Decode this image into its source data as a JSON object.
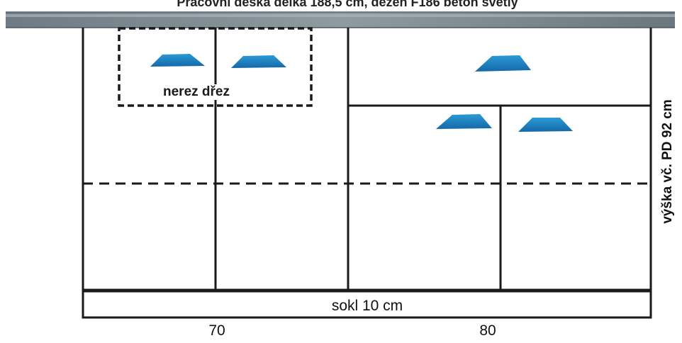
{
  "title": "Pracovní deska délka 188,5 cm, dezén F186 beton světlý",
  "labels": {
    "sink": "nerez dřez",
    "plinth": "sokl 10 cm",
    "height": "výška vč. PD 92 cm"
  },
  "widths": [
    "70",
    "80"
  ],
  "colors": {
    "worktop": "#7f8a91",
    "handle": "#1f86c8",
    "line": "#1a1a1a"
  }
}
